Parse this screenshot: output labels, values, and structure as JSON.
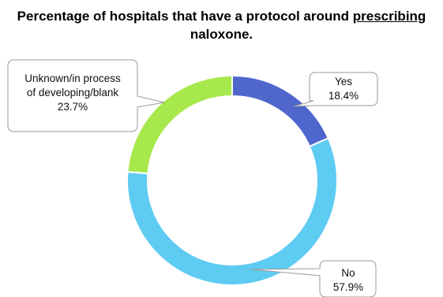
{
  "chart_data": {
    "type": "pie",
    "style": "donut",
    "title_parts": [
      "Percentage of hospitals that have a protocol around ",
      "prescribing",
      " naloxone."
    ],
    "underlined_title_word": "prescribing",
    "slices": [
      {
        "label": "Yes",
        "value": 18.4,
        "value_text": "18.4%",
        "color": "#4F67CC"
      },
      {
        "label": "No",
        "value": 57.9,
        "value_text": "57.9%",
        "color": "#5ECBF2"
      },
      {
        "label_lines": [
          "Unknown/in process",
          "of developing/blank"
        ],
        "value": 23.7,
        "value_text": "23.7%",
        "color": "#A7E84C"
      }
    ],
    "legend": "none"
  }
}
